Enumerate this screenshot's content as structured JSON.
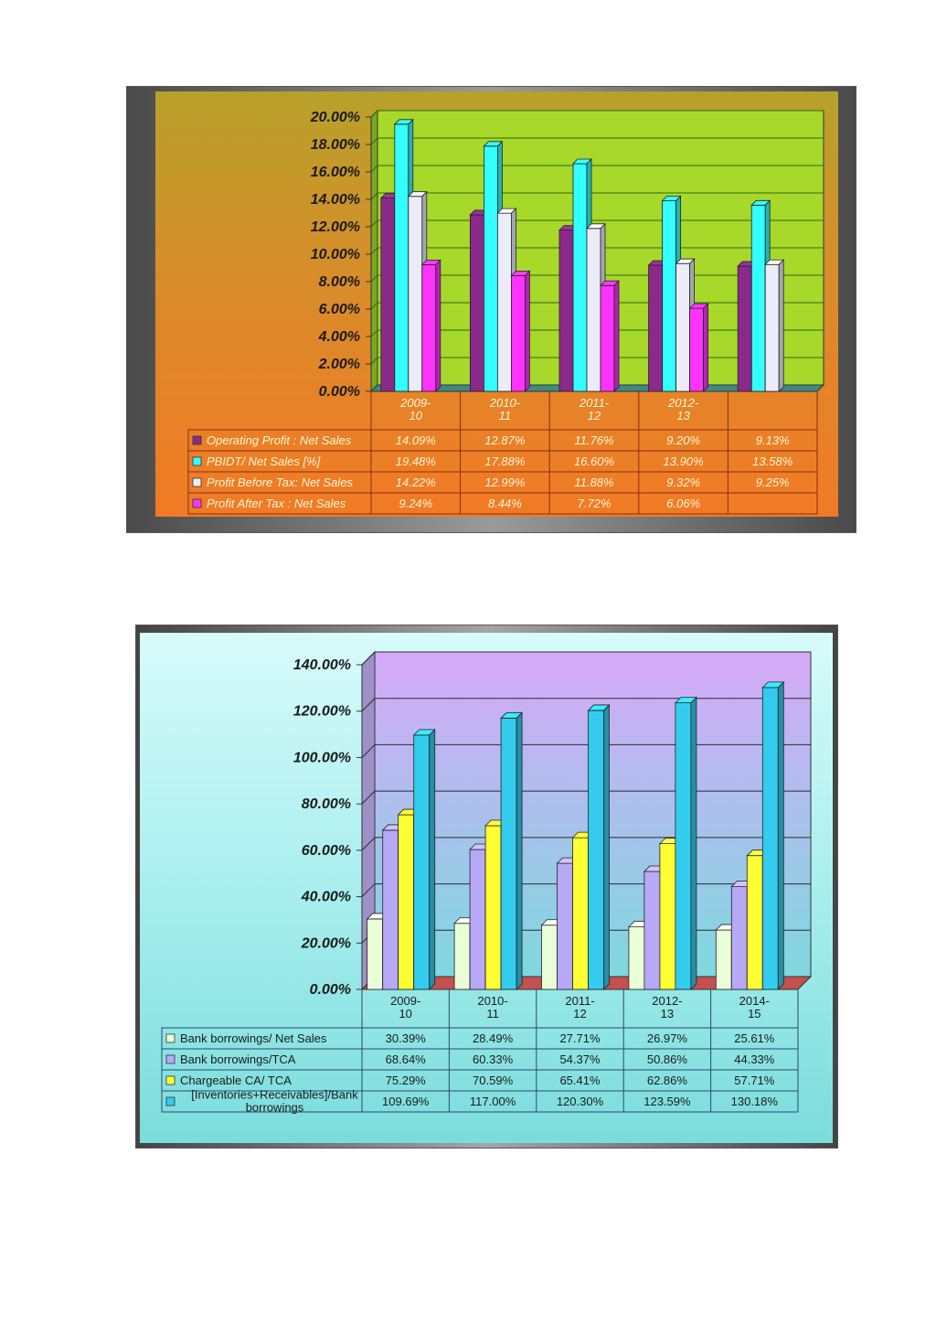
{
  "charts": [
    {
      "id": "chart1",
      "chart_data": {
        "type": "bar",
        "categories": [
          "2009-10",
          "2010-11",
          "2011-12",
          "2012-13",
          ""
        ],
        "series": [
          {
            "name": "Operating Profit : Net Sales",
            "values": [
              14.09,
              12.87,
              11.76,
              9.2,
              9.13
            ],
            "labels": [
              "14.09%",
              "12.87%",
              "11.76%",
              "9.20%",
              "9.13%"
            ],
            "color": "#8b2a8a"
          },
          {
            "name": "PBIDT/ Net Sales [%]",
            "values": [
              19.48,
              17.88,
              16.6,
              13.9,
              13.58
            ],
            "labels": [
              "19.48%",
              "17.88%",
              "16.60%",
              "13.90%",
              "13.58%"
            ],
            "color": "#33ffff"
          },
          {
            "name": "Profit Before Tax: Net Sales",
            "values": [
              14.22,
              12.99,
              11.88,
              9.32,
              9.25
            ],
            "labels": [
              "14.22%",
              "12.99%",
              "11.88%",
              "9.32%",
              "9.25%"
            ],
            "color": "#ececf8"
          },
          {
            "name": "Profit After Tax : Net Sales",
            "values": [
              9.24,
              8.44,
              7.72,
              6.06,
              null
            ],
            "labels": [
              "9.24%",
              "8.44%",
              "7.72%",
              "6.06%",
              ""
            ],
            "color": "#ff33ff"
          }
        ],
        "ylim": [
          0,
          20
        ],
        "yticks": [
          "0.00%",
          "2.00%",
          "4.00%",
          "6.00%",
          "8.00%",
          "10.00%",
          "12.00%",
          "14.00%",
          "16.00%",
          "18.00%",
          "20.00%"
        ],
        "grid": true,
        "legend": "data-table",
        "colors": {
          "plot": "#a8d82a",
          "floor": "#3a8a8a",
          "grid": "#2a6a1a",
          "table_line": "#8a2a1a"
        }
      }
    },
    {
      "id": "chart2",
      "chart_data": {
        "type": "bar",
        "categories": [
          "2009-10",
          "2010-11",
          "2011-12",
          "2012-13",
          "2014-15"
        ],
        "series": [
          {
            "name": "Bank borrowings/ Net Sales",
            "values": [
              30.39,
              28.49,
              27.71,
              26.97,
              25.61
            ],
            "labels": [
              "30.39%",
              "28.49%",
              "27.71%",
              "26.97%",
              "25.61%"
            ],
            "color": "#e8ffd8"
          },
          {
            "name": "Bank borrowings/TCA",
            "values": [
              68.64,
              60.33,
              54.37,
              50.86,
              44.33
            ],
            "labels": [
              "68.64%",
              "60.33%",
              "54.37%",
              "50.86%",
              "44.33%"
            ],
            "color": "#b8a8f8"
          },
          {
            "name": "Chargeable CA/ TCA",
            "values": [
              75.29,
              70.59,
              65.41,
              62.86,
              57.71
            ],
            "labels": [
              "75.29%",
              "70.59%",
              "65.41%",
              "62.86%",
              "57.71%"
            ],
            "color": "#ffff33"
          },
          {
            "name": "[Inventories+Receivables]/Bank borrowings",
            "values": [
              109.69,
              117.0,
              120.3,
              123.59,
              130.18
            ],
            "labels": [
              "109.69%",
              "117.00%",
              "120.30%",
              "123.59%",
              "130.18%"
            ],
            "color": "#33ccee"
          }
        ],
        "ylim": [
          0,
          140
        ],
        "yticks": [
          "0.00%",
          "20.00%",
          "40.00%",
          "60.00%",
          "80.00%",
          "100.00%",
          "120.00%",
          "140.00%"
        ],
        "grid": true,
        "legend": "data-table",
        "colors": {
          "plot_top": "#d6a8f8",
          "plot_bottom": "#7fd8e0",
          "floor": "#c45050",
          "grid": "#2a2a2a",
          "table_line": "#2a4a6a"
        }
      }
    }
  ]
}
